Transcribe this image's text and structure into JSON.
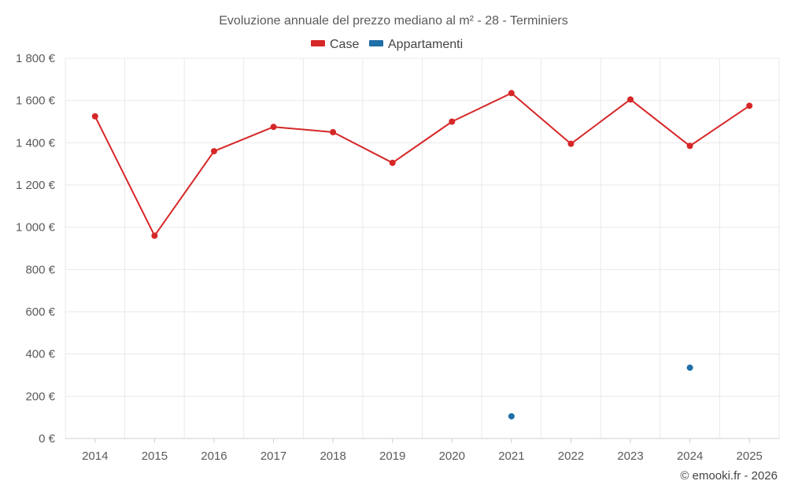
{
  "chart_data": {
    "type": "line",
    "title": "Evoluzione annuale del prezzo mediano al m² - 28 - Terminiers",
    "categories": [
      "2014",
      "2015",
      "2016",
      "2017",
      "2018",
      "2019",
      "2020",
      "2021",
      "2022",
      "2023",
      "2024",
      "2025"
    ],
    "ylim": [
      0,
      1800
    ],
    "y_ticks": [
      0,
      200,
      400,
      600,
      800,
      1000,
      1200,
      1400,
      1600,
      1800
    ],
    "y_tick_labels": [
      "0 €",
      "200 €",
      "400 €",
      "600 €",
      "800 €",
      "1 000 €",
      "1 200 €",
      "1 400 €",
      "1 600 €",
      "1 800 €"
    ],
    "grid": true,
    "legend_position": "top-center",
    "series": [
      {
        "name": "Case",
        "color": "#d62728",
        "values": [
          1525,
          960,
          1360,
          1475,
          1450,
          1305,
          1500,
          1635,
          1395,
          1605,
          1385,
          1575
        ]
      },
      {
        "name": "Appartamenti",
        "color": "#1f6fa8",
        "values": [
          null,
          null,
          null,
          null,
          null,
          null,
          null,
          105,
          null,
          null,
          335,
          null
        ]
      }
    ]
  },
  "credit": "© emooki.fr - 2026"
}
